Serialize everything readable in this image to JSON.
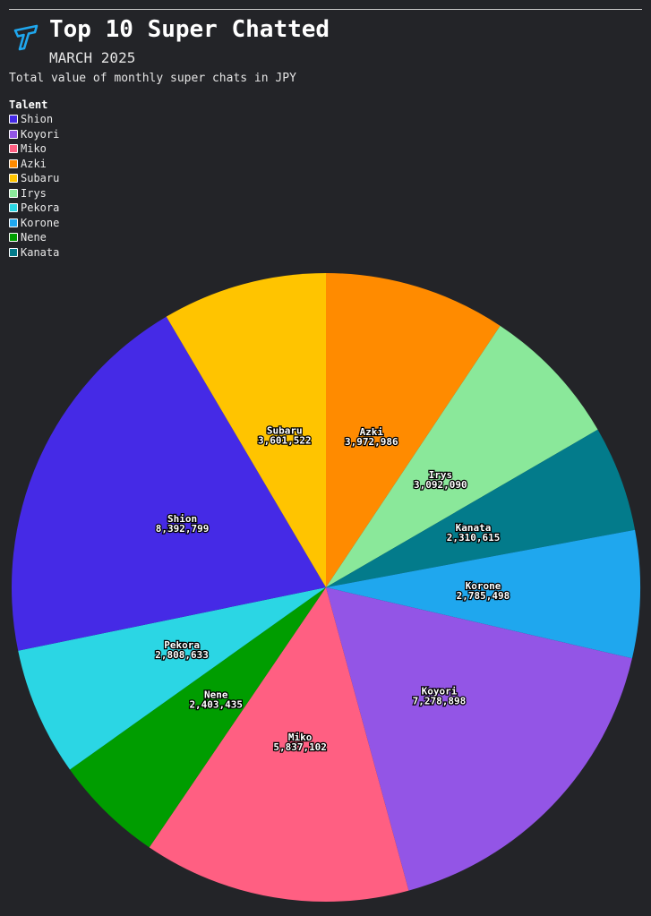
{
  "header": {
    "title": "Top 10 Super Chatted",
    "subtitle": "MARCH 2025",
    "caption": "Total value of monthly super chats in JPY"
  },
  "legend": {
    "title": "Talent",
    "items": [
      {
        "label": "Shion",
        "color": "#452ae6"
      },
      {
        "label": "Koyori",
        "color": "#9355e6"
      },
      {
        "label": "Miko",
        "color": "#ff5f82"
      },
      {
        "label": "Azki",
        "color": "#ff8b00"
      },
      {
        "label": "Subaru",
        "color": "#ffc400"
      },
      {
        "label": "Irys",
        "color": "#8ae89a"
      },
      {
        "label": "Pekora",
        "color": "#2bd6e4"
      },
      {
        "label": "Korone",
        "color": "#1fa7ee"
      },
      {
        "label": "Nene",
        "color": "#009d00"
      },
      {
        "label": "Kanata",
        "color": "#037b8b"
      }
    ]
  },
  "chart_data": {
    "type": "pie",
    "title": "Top 10 Super Chatted",
    "subtitle": "MARCH 2025",
    "caption": "Total value of monthly super chats in JPY",
    "legend_title": "Talent",
    "legend_position": "top-left",
    "slices": [
      {
        "name": "Azki",
        "value": 3972986,
        "value_label": "3,972,986",
        "color": "#ff8b00"
      },
      {
        "name": "Irys",
        "value": 3092090,
        "value_label": "3,092,090",
        "color": "#8ae89a"
      },
      {
        "name": "Kanata",
        "value": 2310615,
        "value_label": "2,310,615",
        "color": "#037b8b"
      },
      {
        "name": "Korone",
        "value": 2785498,
        "value_label": "2,785,498",
        "color": "#1fa7ee"
      },
      {
        "name": "Koyori",
        "value": 7278898,
        "value_label": "7,278,898",
        "color": "#9355e6"
      },
      {
        "name": "Miko",
        "value": 5837102,
        "value_label": "5,837,102",
        "color": "#ff5f82"
      },
      {
        "name": "Nene",
        "value": 2403435,
        "value_label": "2,403,435",
        "color": "#009d00"
      },
      {
        "name": "Pekora",
        "value": 2808633,
        "value_label": "2,808,633",
        "color": "#2bd6e4"
      },
      {
        "name": "Shion",
        "value": 8392799,
        "value_label": "8,392,799",
        "color": "#452ae6"
      },
      {
        "name": "Subaru",
        "value": 3601522,
        "value_label": "3,601,522",
        "color": "#ffc400"
      }
    ]
  }
}
